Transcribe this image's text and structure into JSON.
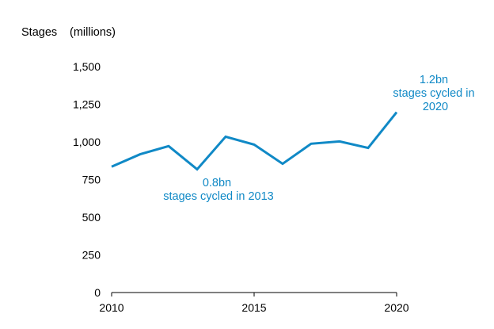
{
  "chart_data": {
    "type": "line",
    "ylabel": "Stages",
    "yunit": "(millions)",
    "x": [
      2010,
      2011,
      2012,
      2013,
      2014,
      2015,
      2016,
      2017,
      2018,
      2019,
      2020
    ],
    "series": [
      {
        "values": [
          835,
          918,
          972,
          818,
          1035,
          982,
          855,
          988,
          1003,
          960,
          1197
        ]
      }
    ],
    "ylim": [
      0,
      1500
    ],
    "xlim": [
      2010,
      2020
    ],
    "yticks": [
      "0",
      "250",
      "500",
      "750",
      "1,000",
      "1,250",
      "1,500"
    ],
    "xticks": [
      "2010",
      "2015",
      "2020"
    ],
    "grid": false,
    "annotations": [
      {
        "lines": [
          "0.8bn",
          "stages cycled in 2013"
        ]
      },
      {
        "lines": [
          "1.2bn",
          "stages cycled in",
          "2020"
        ]
      }
    ],
    "colors": {
      "line": "#1089c6",
      "annotation": "#1089c6",
      "axis": "#000000"
    }
  }
}
